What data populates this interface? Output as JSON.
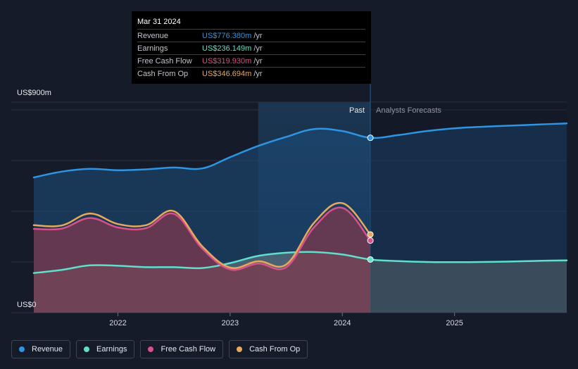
{
  "chart_data": {
    "type": "line",
    "y_unit_label_top": "US$900m",
    "y_unit_label_bottom": "US$0",
    "ylim": [
      0,
      900
    ],
    "xlim": [
      2021.25,
      2026.0
    ],
    "x_ticks": [
      {
        "value": 2022,
        "label": "2022"
      },
      {
        "value": 2023,
        "label": "2023"
      },
      {
        "value": 2024,
        "label": "2024"
      },
      {
        "value": 2025,
        "label": "2025"
      }
    ],
    "past_label": "Past",
    "forecast_label": "Analysts Forecasts",
    "divider_x": 2024.25,
    "highlight_start_x": 2023.25,
    "series": [
      {
        "name": "Revenue",
        "color": "#2d95e3",
        "fill": true,
        "x": [
          2021.25,
          2021.5,
          2021.75,
          2022.0,
          2022.25,
          2022.5,
          2022.75,
          2023.0,
          2023.25,
          2023.5,
          2023.75,
          2024.0,
          2024.25,
          2024.5,
          2024.75,
          2025.0,
          2025.25,
          2025.5,
          2025.75,
          2026.0
        ],
        "values": [
          600,
          626,
          638,
          632,
          636,
          644,
          640,
          690,
          740,
          780,
          815,
          806,
          776,
          788,
          806,
          818,
          825,
          830,
          835,
          840
        ]
      },
      {
        "name": "Earnings",
        "color": "#5ee0cb",
        "fill": true,
        "x": [
          2021.25,
          2021.5,
          2021.75,
          2022.0,
          2022.25,
          2022.5,
          2022.75,
          2023.0,
          2023.25,
          2023.5,
          2023.75,
          2024.0,
          2024.25,
          2024.5,
          2024.75,
          2025.0,
          2025.25,
          2025.5,
          2025.75,
          2026.0
        ],
        "values": [
          176,
          190,
          210,
          208,
          202,
          202,
          198,
          220,
          252,
          266,
          269,
          258,
          236,
          229,
          225,
          224,
          225,
          227,
          230,
          232
        ]
      },
      {
        "name": "Free Cash Flow",
        "color": "#d9508a",
        "fill": true,
        "x": [
          2021.25,
          2021.5,
          2021.75,
          2022.0,
          2022.25,
          2022.5,
          2022.75,
          2023.0,
          2023.25,
          2023.5,
          2023.75,
          2024.0,
          2024.25
        ],
        "values": [
          372,
          373,
          420,
          378,
          375,
          438,
          285,
          192,
          218,
          202,
          380,
          465,
          320
        ]
      },
      {
        "name": "Cash From Op",
        "color": "#e8a95a",
        "fill": false,
        "x": [
          2021.25,
          2021.5,
          2021.75,
          2022.0,
          2022.25,
          2022.5,
          2022.75,
          2023.0,
          2023.25,
          2023.5,
          2023.75,
          2024.0,
          2024.25
        ],
        "values": [
          388,
          387,
          440,
          393,
          388,
          450,
          295,
          200,
          228,
          214,
          400,
          486,
          347
        ]
      }
    ],
    "markers": [
      {
        "x": 2024.25,
        "value": 776,
        "color": "#2d95e3"
      },
      {
        "x": 2024.25,
        "value": 236,
        "color": "#5ee0cb"
      },
      {
        "x": 2024.25,
        "value": 320,
        "color": "#d9508a"
      },
      {
        "x": 2024.25,
        "value": 347,
        "color": "#e8a95a"
      }
    ]
  },
  "tooltip": {
    "date": "Mar 31 2024",
    "unit": "/yr",
    "rows": [
      {
        "name": "Revenue",
        "value": "US$776.380m",
        "color": "#2d95e3"
      },
      {
        "name": "Earnings",
        "value": "US$236.149m",
        "color": "#5ee0cb"
      },
      {
        "name": "Free Cash Flow",
        "value": "US$319.930m",
        "color": "#d9508a"
      },
      {
        "name": "Cash From Op",
        "value": "US$346.694m",
        "color": "#e8a95a"
      }
    ]
  },
  "legend": [
    {
      "label": "Revenue",
      "color": "#2d95e3"
    },
    {
      "label": "Earnings",
      "color": "#5ee0cb"
    },
    {
      "label": "Free Cash Flow",
      "color": "#d9508a"
    },
    {
      "label": "Cash From Op",
      "color": "#e8a95a"
    }
  ]
}
